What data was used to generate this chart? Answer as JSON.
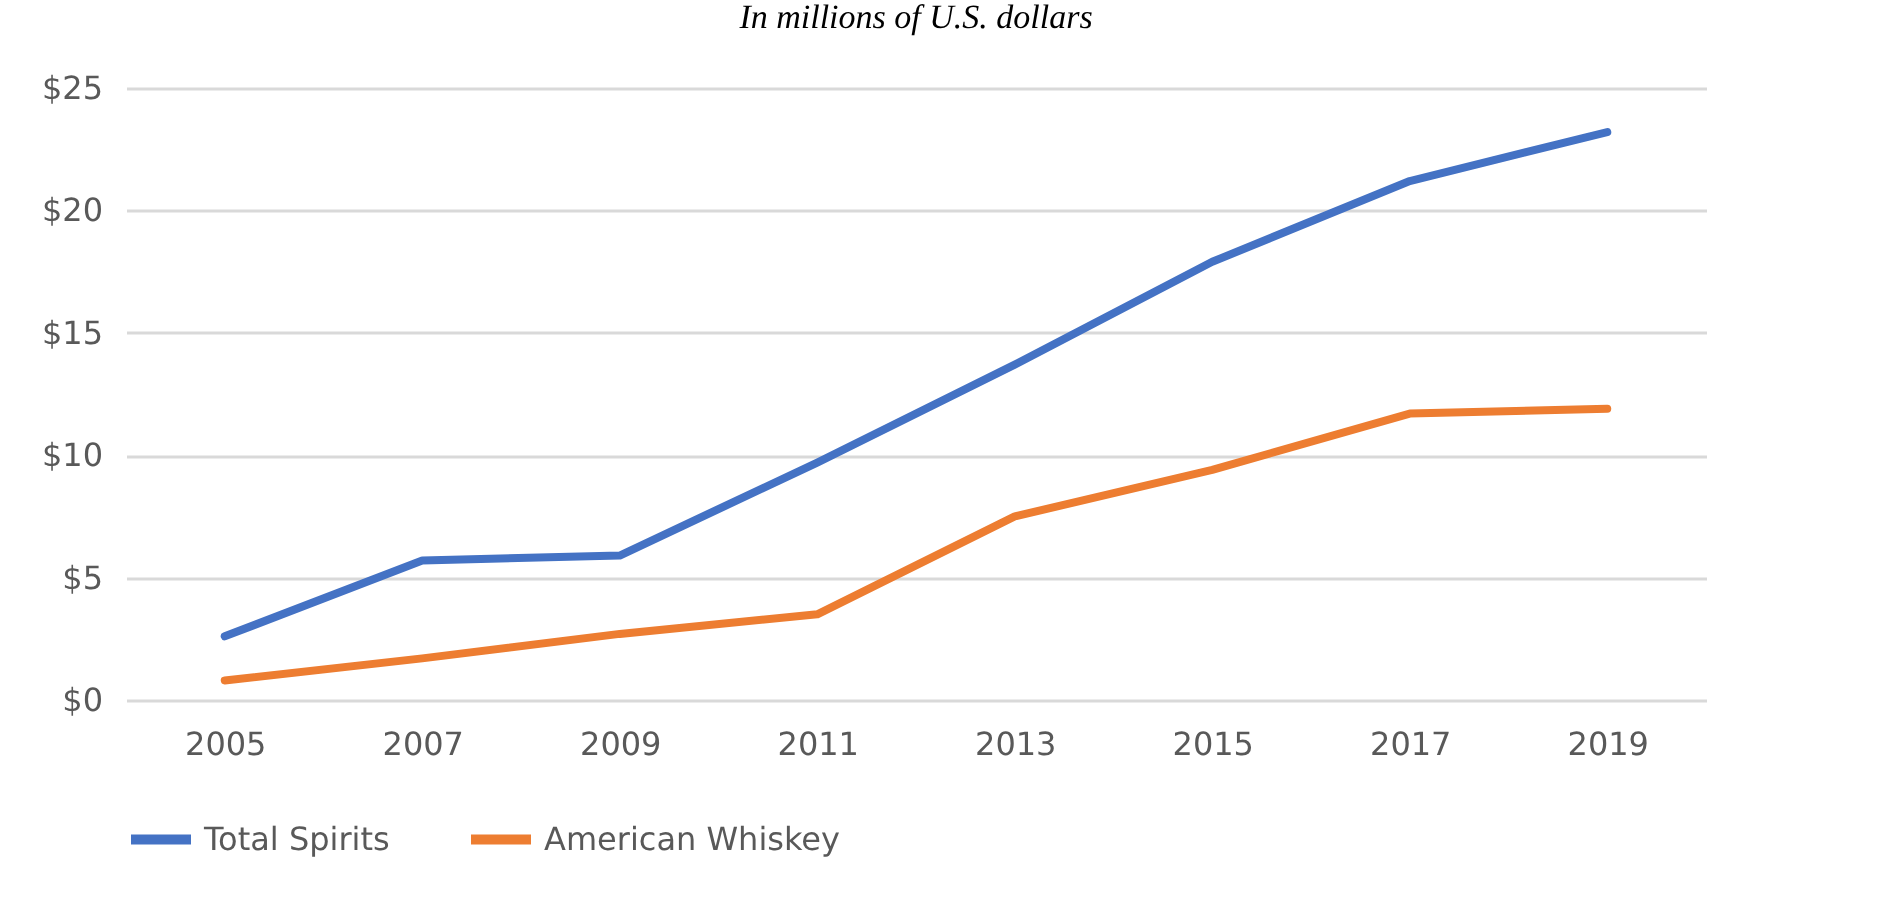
{
  "chart_data": {
    "type": "line",
    "subtitle": "In millions of U.S. dollars",
    "categories": [
      "2005",
      "2007",
      "2009",
      "2011",
      "2013",
      "2015",
      "2017",
      "2019"
    ],
    "series": [
      {
        "name": "Total Spirits",
        "color": "#4472c4",
        "values": [
          2.6,
          5.7,
          5.9,
          9.7,
          13.7,
          17.9,
          21.2,
          23.2
        ]
      },
      {
        "name": "American Whiskey",
        "color": "#ed7d31",
        "values": [
          0.8,
          1.7,
          2.7,
          3.5,
          7.5,
          9.4,
          11.7,
          11.9
        ]
      }
    ],
    "ylim": [
      0,
      25
    ],
    "yticks": [
      {
        "value": 0,
        "label": "$0"
      },
      {
        "value": 5,
        "label": "$5"
      },
      {
        "value": 10,
        "label": "$10"
      },
      {
        "value": 15,
        "label": "$15"
      },
      {
        "value": 20,
        "label": "$20"
      },
      {
        "value": 25,
        "label": "$25"
      }
    ],
    "grid": "y",
    "legend": "bottom",
    "marker": "none",
    "line_style": "solid"
  }
}
